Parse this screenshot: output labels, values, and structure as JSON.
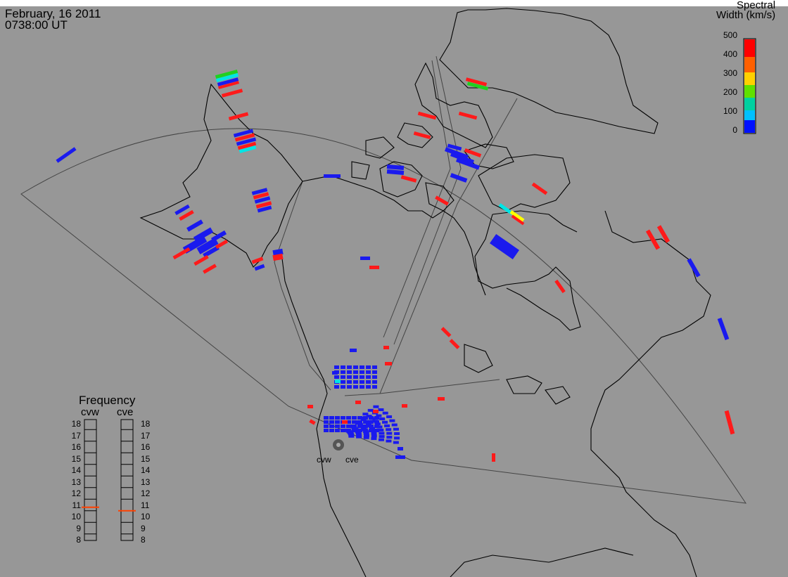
{
  "header": {
    "date": "February, 16 2011",
    "time": "0738:00 UT"
  },
  "colorbar": {
    "title_line1": "Spectral",
    "title_line2": "Width (km/s)",
    "ticks": [
      "500",
      "400",
      "300",
      "200",
      "100",
      "0"
    ],
    "colors": [
      "#ff0000",
      "#ff8000",
      "#ffff00",
      "#00c000",
      "#00ffff",
      "#0000ff"
    ]
  },
  "frequency": {
    "title": "Frequency",
    "radar_left": "cvw",
    "radar_right": "cve",
    "levels": [
      "18",
      "17",
      "16",
      "15",
      "14",
      "13",
      "12",
      "11",
      "10",
      "9",
      "8"
    ],
    "cvw_value": 10.8,
    "cve_value": 10.5,
    "marker_color": "#ff4000"
  },
  "radars": {
    "left_label": "cvw",
    "right_label": "cve"
  },
  "colors": {
    "background": "#979797",
    "echo_blue": "#1a1aee",
    "echo_red": "#ff1a1a",
    "echo_green": "#20d020",
    "echo_cyan": "#00e5e5",
    "echo_yellow": "#ffff00"
  }
}
